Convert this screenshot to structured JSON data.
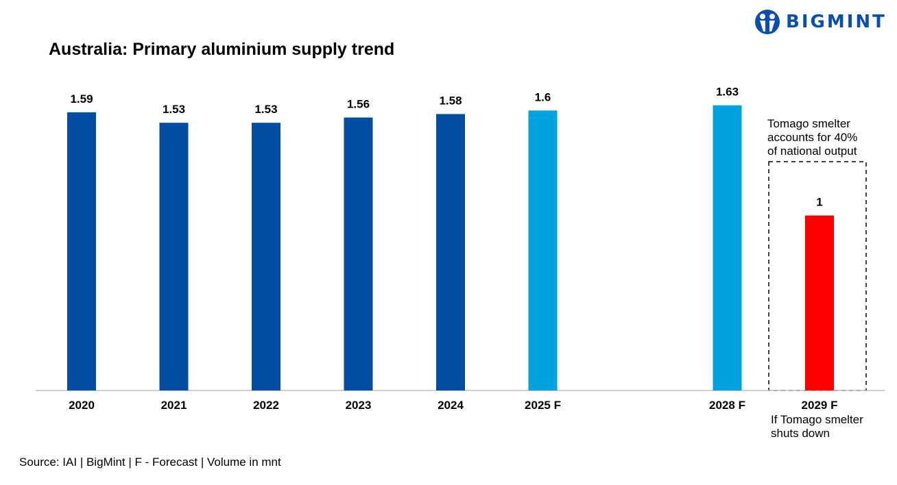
{
  "logo": {
    "text": "BIGMINT"
  },
  "chart_data": {
    "type": "bar",
    "title": "Australia: Primary aluminium supply trend",
    "categories": [
      "2020",
      "2021",
      "2022",
      "2023",
      "2024",
      "2025 F",
      "2028 F",
      "2029 F"
    ],
    "values": [
      1.59,
      1.53,
      1.53,
      1.56,
      1.58,
      1.6,
      1.63,
      1
    ],
    "data_labels": [
      "1.59",
      "1.53",
      "1.53",
      "1.56",
      "1.58",
      "1.6",
      "1.63",
      "1"
    ],
    "bar_colors": [
      "#034EA2",
      "#034EA2",
      "#034EA2",
      "#034EA2",
      "#034EA2",
      "#00A3E0",
      "#00A3E0",
      "#FF0000"
    ],
    "ylim": [
      0,
      1.75
    ],
    "grid": false,
    "annotation": "Tomago smelter accounts for 40% of national output",
    "category_note": "If Tomago smelter shuts down",
    "source": "Source: IAI | BigMint | F - Forecast | Volume in mnt"
  }
}
